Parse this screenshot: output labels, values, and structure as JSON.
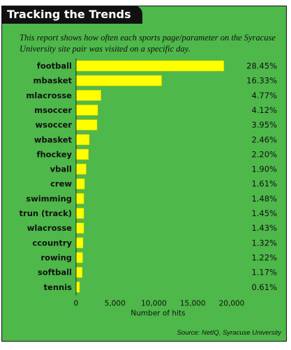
{
  "title": "Tracking the Trends",
  "subtitle": "This report shows how often each sports page/parameter on the Syracuse University site pair was visited on a specific day.",
  "source": "Source: NetIQ, Syracuse University",
  "colors": {
    "panel": "#4eb84a",
    "bar": "#ffff00",
    "bar_edge": "#c8c800",
    "title_bg": "#111111"
  },
  "chart_data": {
    "type": "bar",
    "orientation": "horizontal",
    "categories": [
      "football",
      "mbasket",
      "mlacrosse",
      "msoccer",
      "wsoccer",
      "wbasket",
      "fhockey",
      "vball",
      "crew",
      "swimming",
      "trun (track)",
      "wlacrosse",
      "ccountry",
      "rowing",
      "softball",
      "tennis"
    ],
    "values": [
      19000,
      11000,
      3200,
      2800,
      2700,
      1700,
      1600,
      1300,
      1100,
      1000,
      1000,
      1000,
      900,
      850,
      800,
      450
    ],
    "percent_labels": [
      "28.45%",
      "16.33%",
      "4.77%",
      "4.12%",
      "3.95%",
      "2.46%",
      "2.20%",
      "1.90%",
      "1.61%",
      "1.48%",
      "1.45%",
      "1.43%",
      "1.32%",
      "1.22%",
      "1.17%",
      "0.61%"
    ],
    "xlabel": "Number of hits",
    "xlim": [
      0,
      20000
    ],
    "xticks": [
      0,
      5000,
      10000,
      15000,
      20000
    ],
    "xtick_labels": [
      "0",
      "5,000",
      "10,000",
      "15,000",
      "20,000"
    ],
    "grid": false,
    "legend": "none"
  }
}
